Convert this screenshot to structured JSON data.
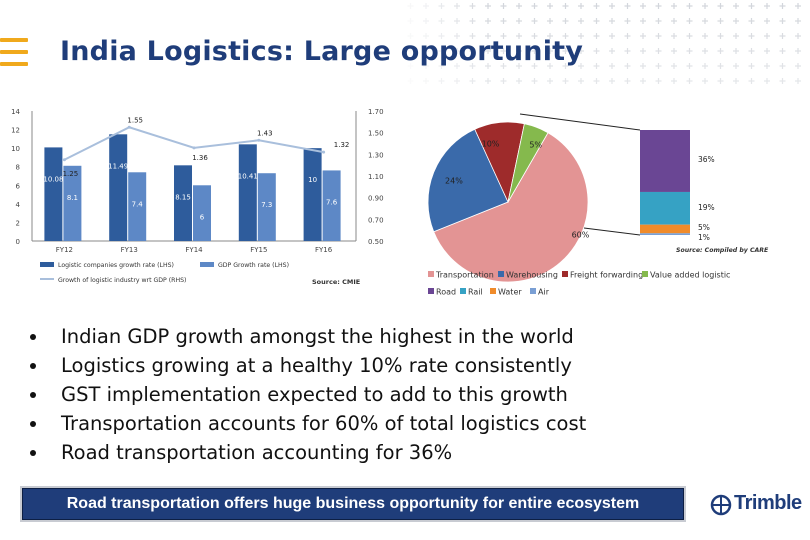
{
  "slide": {
    "title": "India Logistics: Large opportunity",
    "bullets": [
      "Indian GDP growth amongst the highest in the world",
      "Logistics growing at a healthy 10% rate consistently",
      "GST implementation expected to add to this growth",
      "Transportation accounts for 60% of total logistics cost",
      "Road transportation accounting for 36%"
    ],
    "banner": "Road transportation offers huge business opportunity for entire ecosystem",
    "logo": "Trimble",
    "colors": {
      "title": "#1f3d7a",
      "accent": "#f0a91c",
      "banner": "#1f3d7a"
    }
  },
  "chart_data": [
    {
      "type": "bar",
      "categories": [
        "FY12",
        "FY13",
        "FY14",
        "FY15",
        "FY16"
      ],
      "series": [
        {
          "name": "Logistic companies growth rate (LHS)",
          "axis": "left",
          "color": "#2e5c9c",
          "values": [
            10.08,
            11.49,
            8.15,
            10.41,
            10
          ],
          "labels": [
            "10.08",
            "11.49",
            "8.15",
            "10.41",
            "10"
          ]
        },
        {
          "name": "GDP Growth rate (LHS)",
          "axis": "left",
          "color": "#5d88c6",
          "values": [
            8.1,
            7.4,
            6,
            7.3,
            7.6
          ],
          "labels": [
            "8.1",
            "7.4",
            "6",
            "7.3",
            "7.6"
          ]
        },
        {
          "name": "Growth of logistic industry wrt GDP (RHS)",
          "axis": "right",
          "type": "line",
          "color": "#a9bfdc",
          "values": [
            1.25,
            1.55,
            1.36,
            1.43,
            1.32
          ],
          "labels": [
            "1.25",
            "1.55",
            "1.36",
            "1.43",
            "1.32"
          ]
        }
      ],
      "ylim": [
        0,
        14
      ],
      "yticks": [
        "0",
        "2",
        "4",
        "6",
        "8",
        "10",
        "12",
        "14"
      ],
      "y2lim": [
        0.5,
        1.7
      ],
      "y2ticks": [
        "0.50",
        "0.70",
        "0.90",
        "1.10",
        "1.30",
        "1.50",
        "1.70"
      ],
      "source": "Source: CMIE",
      "legend_position": "bottom",
      "grid": false
    },
    {
      "type": "pie",
      "categories": [
        "Transportation",
        "Warehousing",
        "Freight forwarding",
        "Value added logistic"
      ],
      "values": [
        60,
        24,
        10,
        5
      ],
      "labels": [
        "60%",
        "24%",
        "10%",
        "5%"
      ],
      "colors": [
        "#e39494",
        "#3a6aaa",
        "#9e2b2b",
        "#85b94d"
      ],
      "legend_position": "bottom"
    },
    {
      "type": "bar",
      "stacked": true,
      "categories": [
        "Road",
        "Rail",
        "Water",
        "Air"
      ],
      "values": [
        36,
        19,
        5,
        1
      ],
      "labels": [
        "36%",
        "19%",
        "5%",
        "1%"
      ],
      "colors": [
        "#6a4694",
        "#36a2c4",
        "#f08b2a",
        "#7a9fd4"
      ],
      "source": "Source: Compiled by CARE",
      "legend_position": "bottom"
    }
  ]
}
